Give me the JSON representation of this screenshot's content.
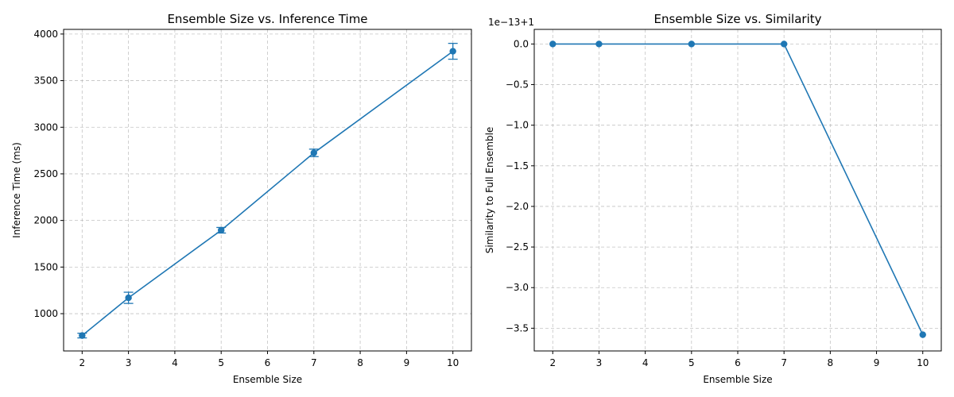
{
  "chart_data": [
    {
      "type": "line",
      "title": "Ensemble Size vs. Inference Time",
      "xlabel": "Ensemble Size",
      "ylabel": "Inference Time (ms)",
      "xlim": [
        1.6,
        10.4
      ],
      "ylim": [
        600,
        4050
      ],
      "xticks": [
        2,
        3,
        4,
        5,
        6,
        7,
        8,
        9,
        10
      ],
      "yticks": [
        1000,
        1500,
        2000,
        2500,
        3000,
        3500,
        4000
      ],
      "grid": true,
      "color": "#1f77b4",
      "series": [
        {
          "x": [
            2,
            3,
            5,
            7,
            10
          ],
          "y": [
            765,
            1170,
            1895,
            2725,
            3815
          ],
          "error": [
            25,
            60,
            30,
            40,
            85
          ]
        }
      ]
    },
    {
      "type": "line",
      "title": "Ensemble Size vs. Similarity",
      "xlabel": "Ensemble Size",
      "ylabel": "Similarity to Full Ensemble",
      "offset_label": "1e−13+1",
      "xlim": [
        1.6,
        10.4
      ],
      "ylim": [
        -3.78,
        0.18
      ],
      "xticks": [
        2,
        3,
        4,
        5,
        6,
        7,
        8,
        9,
        10
      ],
      "yticks": [
        0.0,
        -0.5,
        -1.0,
        -1.5,
        -2.0,
        -2.5,
        -3.0,
        -3.5
      ],
      "ytick_labels": [
        "0.0",
        "−0.5",
        "−1.0",
        "−1.5",
        "−2.0",
        "−2.5",
        "−3.0",
        "−3.5"
      ],
      "grid": true,
      "color": "#1f77b4",
      "series": [
        {
          "x": [
            2,
            3,
            5,
            7,
            10
          ],
          "y": [
            0.0,
            0.0,
            0.0,
            0.0,
            -3.58
          ]
        }
      ]
    }
  ]
}
